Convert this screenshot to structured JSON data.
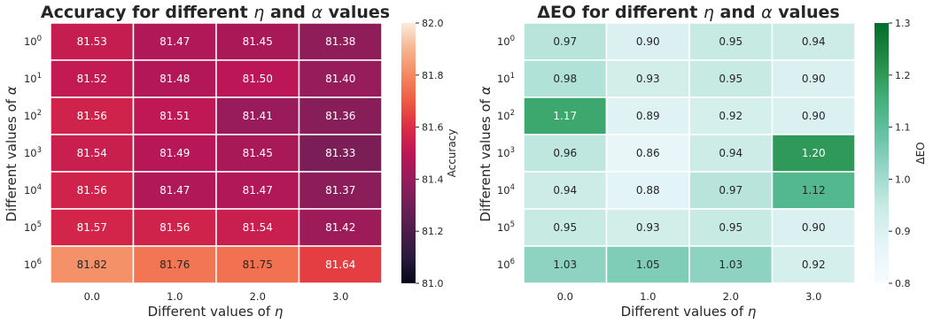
{
  "chart_data": [
    {
      "type": "heatmap",
      "title_prefix": "Accuracy for different ",
      "title_eta": "η",
      "title_mid": " and ",
      "title_alpha": "α",
      "title_suffix": " values",
      "xlabel_prefix": "Different values of ",
      "xlabel_symbol": "η",
      "ylabel_prefix": "Different values of ",
      "ylabel_symbol": "α",
      "x": [
        "0.0",
        "1.0",
        "2.0",
        "3.0"
      ],
      "y": [
        "0",
        "1",
        "2",
        "3",
        "4",
        "5",
        "6"
      ],
      "y_base": "10",
      "values": [
        [
          81.53,
          81.47,
          81.45,
          81.38
        ],
        [
          81.52,
          81.48,
          81.5,
          81.4
        ],
        [
          81.56,
          81.51,
          81.41,
          81.36
        ],
        [
          81.54,
          81.49,
          81.45,
          81.33
        ],
        [
          81.56,
          81.47,
          81.47,
          81.37
        ],
        [
          81.57,
          81.56,
          81.54,
          81.42
        ],
        [
          81.82,
          81.76,
          81.75,
          81.64
        ]
      ],
      "cell_labels": [
        [
          "81.53",
          "81.47",
          "81.45",
          "81.38"
        ],
        [
          "81.52",
          "81.48",
          "81.50",
          "81.40"
        ],
        [
          "81.56",
          "81.51",
          "81.41",
          "81.36"
        ],
        [
          "81.54",
          "81.49",
          "81.45",
          "81.33"
        ],
        [
          "81.56",
          "81.47",
          "81.47",
          "81.37"
        ],
        [
          "81.57",
          "81.56",
          "81.54",
          "81.42"
        ],
        [
          "81.82",
          "81.76",
          "81.75",
          "81.64"
        ]
      ],
      "colorbar": {
        "label": "Accuracy",
        "range": [
          81.0,
          82.0
        ],
        "ticks": [
          "81.0",
          "81.2",
          "81.4",
          "81.6",
          "81.8",
          "82.0"
        ],
        "tick_values": [
          81.0,
          81.2,
          81.4,
          81.6,
          81.8,
          82.0
        ],
        "colormap": "rocket",
        "stops": [
          "#03051a",
          "#2b1a3f",
          "#4c1d4b",
          "#701f57",
          "#961c5b",
          "#bc1656",
          "#dd2c45",
          "#ef5a41",
          "#f58860",
          "#f6b48e",
          "#faebdd"
        ]
      },
      "grid": false
    },
    {
      "type": "heatmap",
      "title_prefix": "ΔEO for different ",
      "title_eta": "η",
      "title_mid": " and ",
      "title_alpha": "α",
      "title_suffix": " values",
      "xlabel_prefix": "Different values of ",
      "xlabel_symbol": "η",
      "ylabel_prefix": "Different values of ",
      "ylabel_symbol": "α",
      "x": [
        "0.0",
        "1.0",
        "2.0",
        "3.0"
      ],
      "y": [
        "0",
        "1",
        "2",
        "3",
        "4",
        "5",
        "6"
      ],
      "y_base": "10",
      "values": [
        [
          0.97,
          0.9,
          0.95,
          0.94
        ],
        [
          0.98,
          0.93,
          0.95,
          0.9
        ],
        [
          1.17,
          0.89,
          0.92,
          0.9
        ],
        [
          0.96,
          0.86,
          0.94,
          1.2
        ],
        [
          0.94,
          0.88,
          0.97,
          1.12
        ],
        [
          0.95,
          0.93,
          0.95,
          0.9
        ],
        [
          1.03,
          1.05,
          1.03,
          0.92
        ]
      ],
      "cell_labels": [
        [
          "0.97",
          "0.90",
          "0.95",
          "0.94"
        ],
        [
          "0.98",
          "0.93",
          "0.95",
          "0.90"
        ],
        [
          "1.17",
          "0.89",
          "0.92",
          "0.90"
        ],
        [
          "0.96",
          "0.86",
          "0.94",
          "1.20"
        ],
        [
          "0.94",
          "0.88",
          "0.97",
          "1.12"
        ],
        [
          "0.95",
          "0.93",
          "0.95",
          "0.90"
        ],
        [
          "1.03",
          "1.05",
          "1.03",
          "0.92"
        ]
      ],
      "colorbar": {
        "label": "ΔEO",
        "range": [
          0.8,
          1.3
        ],
        "ticks": [
          "0.8",
          "0.9",
          "1.0",
          "1.1",
          "1.2",
          "1.3"
        ],
        "tick_values": [
          0.8,
          0.9,
          1.0,
          1.1,
          1.2,
          1.3
        ],
        "colormap": "BuGn",
        "stops": [
          "#f7fcfd",
          "#e5f5f9",
          "#ccece6",
          "#99d8c9",
          "#66c2a4",
          "#41ae76",
          "#238b45",
          "#006d2c"
        ]
      },
      "grid": false
    }
  ]
}
